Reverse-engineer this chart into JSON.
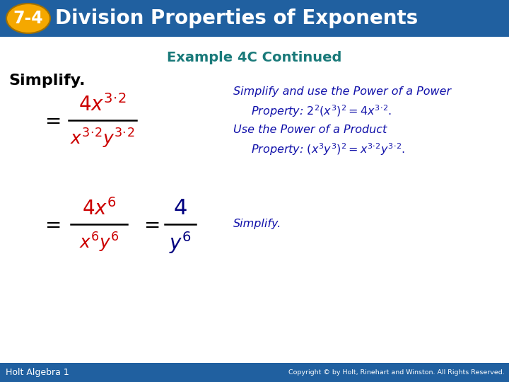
{
  "title_text": "Division Properties of Exponents",
  "title_number": "7-4",
  "header_bg_color": "#2060a0",
  "header_number_bg": "#f5a800",
  "example_title": "Example 4C Continued",
  "example_title_color": "#1a7a7a",
  "footer_bg_color": "#2060a0",
  "footer_left": "Holt Algebra 1",
  "footer_right": "Copyright © by Holt, Rinehart and Winston. All Rights Reserved.",
  "simplify_label": "Simplify.",
  "red_color": "#cc0000",
  "blue_color": "#1111aa",
  "dark_blue": "#000080",
  "black": "#000000",
  "white": "#ffffff"
}
